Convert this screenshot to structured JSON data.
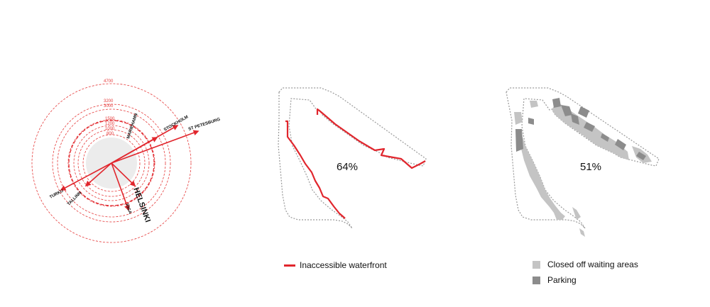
{
  "radial": {
    "rings": [
      "4700",
      "3200",
      "3000",
      "1500",
      "1200",
      "1000",
      "800"
    ],
    "cities": [
      "MARIEHAMN",
      "STOCKHOLM",
      "ST PETESBURG",
      "TURKU",
      "TALLINN",
      "HELSINKI",
      "RIGA"
    ]
  },
  "waterfront": {
    "percent": "64%",
    "legend_label": "Inaccessible waterfront",
    "color": "#e1262d"
  },
  "areas": {
    "percent": "51%",
    "legend": [
      {
        "label": "Closed off waiting areas",
        "color": "#c4c4c4"
      },
      {
        "label": "Parking",
        "color": "#8c8c8c"
      }
    ]
  }
}
